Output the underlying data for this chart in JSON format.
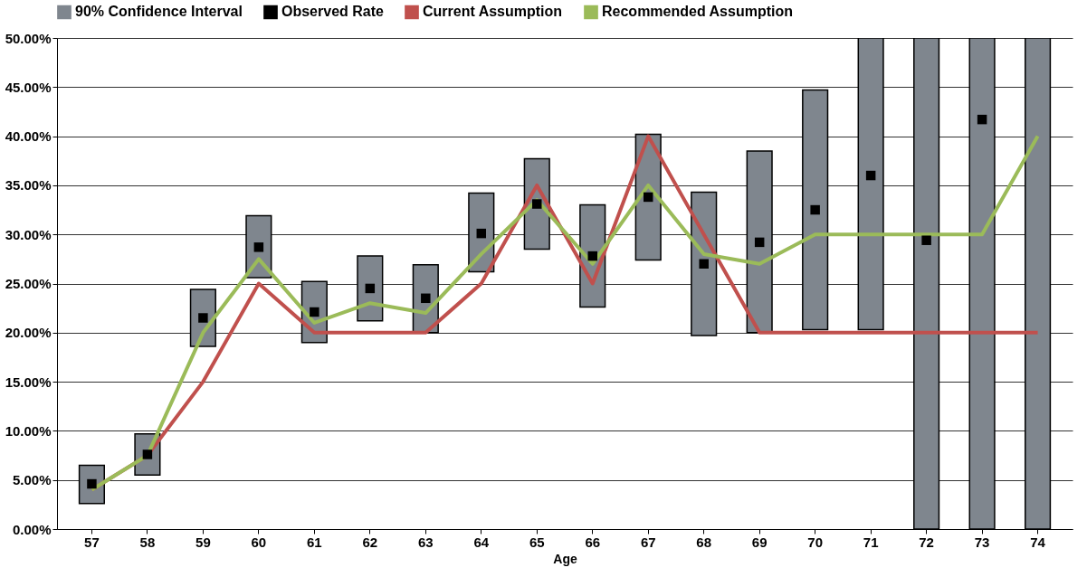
{
  "chart_data": {
    "type": "bar",
    "xlabel": "Age",
    "categories": [
      "57",
      "58",
      "59",
      "60",
      "61",
      "62",
      "63",
      "64",
      "65",
      "66",
      "67",
      "68",
      "69",
      "70",
      "71",
      "72",
      "73",
      "74"
    ],
    "series": [
      {
        "name": "90% Confidence Interval",
        "color": "#7f868e",
        "base": [
          2.6,
          5.5,
          18.6,
          25.6,
          19.0,
          21.2,
          20.0,
          26.2,
          28.5,
          22.6,
          27.4,
          19.7,
          20.0,
          20.3,
          20.3,
          0,
          0,
          0
        ],
        "values": [
          3.9,
          4.2,
          5.8,
          6.3,
          6.2,
          6.6,
          6.9,
          8.0,
          9.2,
          10.4,
          12.8,
          14.6,
          18.5,
          24.4,
          29.7,
          50,
          50,
          50
        ]
      },
      {
        "name": "Observed Rate",
        "type": "scatter",
        "marker": "square",
        "color": "#000000",
        "values": [
          4.6,
          7.6,
          21.5,
          28.7,
          22.1,
          24.5,
          23.5,
          30.1,
          33.1,
          27.8,
          33.8,
          27.0,
          29.2,
          32.5,
          36.0,
          29.4,
          41.7,
          null
        ]
      },
      {
        "name": "Current Assumption",
        "type": "line",
        "color": "#c0504d",
        "values": [
          4,
          7.5,
          15,
          25,
          20,
          20,
          20,
          25,
          35,
          25,
          40,
          30,
          20,
          20,
          20,
          20,
          20,
          20
        ]
      },
      {
        "name": "Recommended Assumption",
        "type": "line",
        "color": "#9bbb59",
        "values": [
          4,
          7.5,
          20,
          27.5,
          21,
          23,
          22,
          28,
          33.5,
          27,
          35,
          28,
          27,
          30,
          30,
          30,
          30,
          40
        ]
      }
    ],
    "ylim": [
      0,
      50
    ],
    "yticks": [
      {
        "value": 0,
        "label": "0.00%"
      },
      {
        "value": 5,
        "label": "5.00%"
      },
      {
        "value": 10,
        "label": "10.00%"
      },
      {
        "value": 15,
        "label": "15.00%"
      },
      {
        "value": 20,
        "label": "20.00%"
      },
      {
        "value": 25,
        "label": "25.00%"
      },
      {
        "value": 30,
        "label": "30.00%"
      },
      {
        "value": 35,
        "label": "35.00%"
      },
      {
        "value": 40,
        "label": "40.00%"
      },
      {
        "value": 45,
        "label": "45.00%"
      },
      {
        "value": 50,
        "label": "50.00%"
      }
    ],
    "grid": "y",
    "legend": "top"
  }
}
